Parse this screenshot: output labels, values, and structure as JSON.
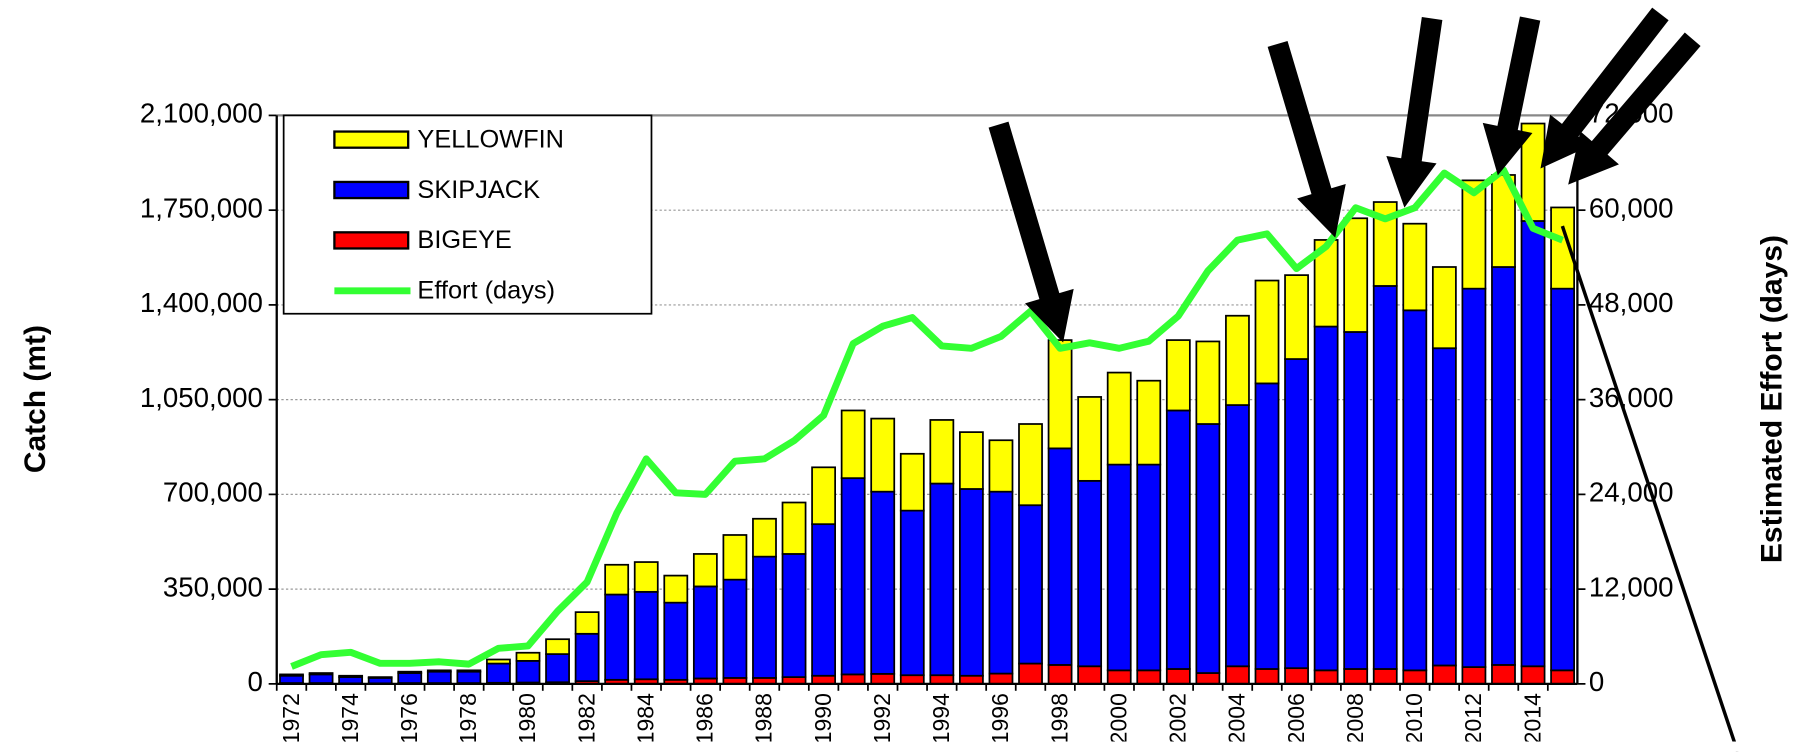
{
  "chart_data": {
    "type": "stacked-bar-line",
    "categories": [
      "1972",
      null,
      "1974",
      null,
      "1976",
      null,
      "1978",
      null,
      "1980",
      null,
      "1982",
      null,
      "1984",
      null,
      "1986",
      null,
      "1988",
      null,
      "1990",
      null,
      "1992",
      null,
      "1994",
      null,
      "1996",
      null,
      "1998",
      null,
      "2000",
      null,
      "2002",
      null,
      "2004",
      null,
      "2006",
      null,
      "2008",
      null,
      "2010",
      null,
      "2012",
      null,
      "2014",
      null
    ],
    "y_label": "Catch (mt)",
    "y2_label": "Estimated Effort (days)",
    "ylim": [
      0,
      2100000
    ],
    "yticks": [
      0,
      {
        "value": 350000,
        "label": "350,000"
      },
      {
        "value": 700000,
        "label": "700,000"
      },
      {
        "value": 1050000,
        "label": "1,050,000"
      },
      {
        "value": 1400000,
        "label": "1,400,000"
      },
      {
        "value": 1750000,
        "label": "1,750,000"
      },
      {
        "value": 2100000,
        "label": "2,100,000"
      }
    ],
    "y2lim": [
      0,
      72000
    ],
    "y2ticks": [
      0,
      {
        "value": 12000,
        "label": "12,000"
      },
      {
        "value": 24000,
        "label": "24,000"
      },
      {
        "value": 36000,
        "label": "36,000"
      },
      {
        "value": 48000,
        "label": "48,000"
      },
      {
        "value": 60000,
        "label": "60,000"
      },
      {
        "value": 72000,
        "label": "72,000"
      }
    ],
    "grid": true,
    "legend": "top-left",
    "series": [
      {
        "name": "BIGEYE",
        "color": "#ff0000",
        "kind": "bar",
        "values": [
          3000,
          3000,
          2000,
          2000,
          3000,
          3000,
          3000,
          4000,
          5000,
          6000,
          10000,
          15000,
          17000,
          15000,
          20000,
          22000,
          22000,
          25000,
          30000,
          35000,
          37000,
          32000,
          32000,
          30000,
          38000,
          75000,
          70000,
          65000,
          50000,
          50000,
          55000,
          40000,
          65000,
          55000,
          58000,
          50000,
          55000,
          55000,
          50000,
          68000,
          62000,
          70000,
          65000,
          50000
        ]
      },
      {
        "name": "SKIPJACK",
        "color": "#0000ff",
        "kind": "bar",
        "values": [
          27000,
          32000,
          23000,
          20000,
          37000,
          42000,
          42000,
          71000,
          80000,
          104000,
          175000,
          315000,
          323000,
          285000,
          340000,
          363000,
          448000,
          455000,
          560000,
          725000,
          673000,
          608000,
          708000,
          690000,
          672000,
          585000,
          800000,
          685000,
          760000,
          760000,
          955000,
          920000,
          965000,
          1055000,
          1142000,
          1270000,
          1245000,
          1415000,
          1330000,
          1172000,
          1398000,
          1470000,
          1645000,
          1410000
        ]
      },
      {
        "name": "YELLOWFIN",
        "color": "#ffff00",
        "kind": "bar",
        "values": [
          5000,
          5000,
          5000,
          3000,
          5000,
          5000,
          5000,
          15000,
          30000,
          55000,
          80000,
          110000,
          110000,
          100000,
          120000,
          165000,
          140000,
          190000,
          210000,
          250000,
          270000,
          210000,
          235000,
          210000,
          190000,
          300000,
          400000,
          310000,
          340000,
          310000,
          260000,
          305000,
          330000,
          380000,
          310000,
          320000,
          420000,
          310000,
          320000,
          300000,
          400000,
          340000,
          360000,
          300000
        ]
      },
      {
        "name": "Effort (days)",
        "color": "#33ff33",
        "kind": "line",
        "axis": "y2",
        "values": [
          2200,
          3700,
          4000,
          2600,
          2600,
          2800,
          2500,
          4500,
          4800,
          9200,
          12900,
          21600,
          28500,
          24200,
          24000,
          28200,
          28500,
          30800,
          34000,
          43100,
          45300,
          46400,
          42800,
          42500,
          44000,
          47200,
          42500,
          43200,
          42500,
          43400,
          46600,
          52300,
          56200,
          57000,
          52600,
          55400,
          60300,
          58900,
          60300,
          64700,
          62200,
          65100,
          57700,
          56200
        ]
      }
    ]
  }
}
